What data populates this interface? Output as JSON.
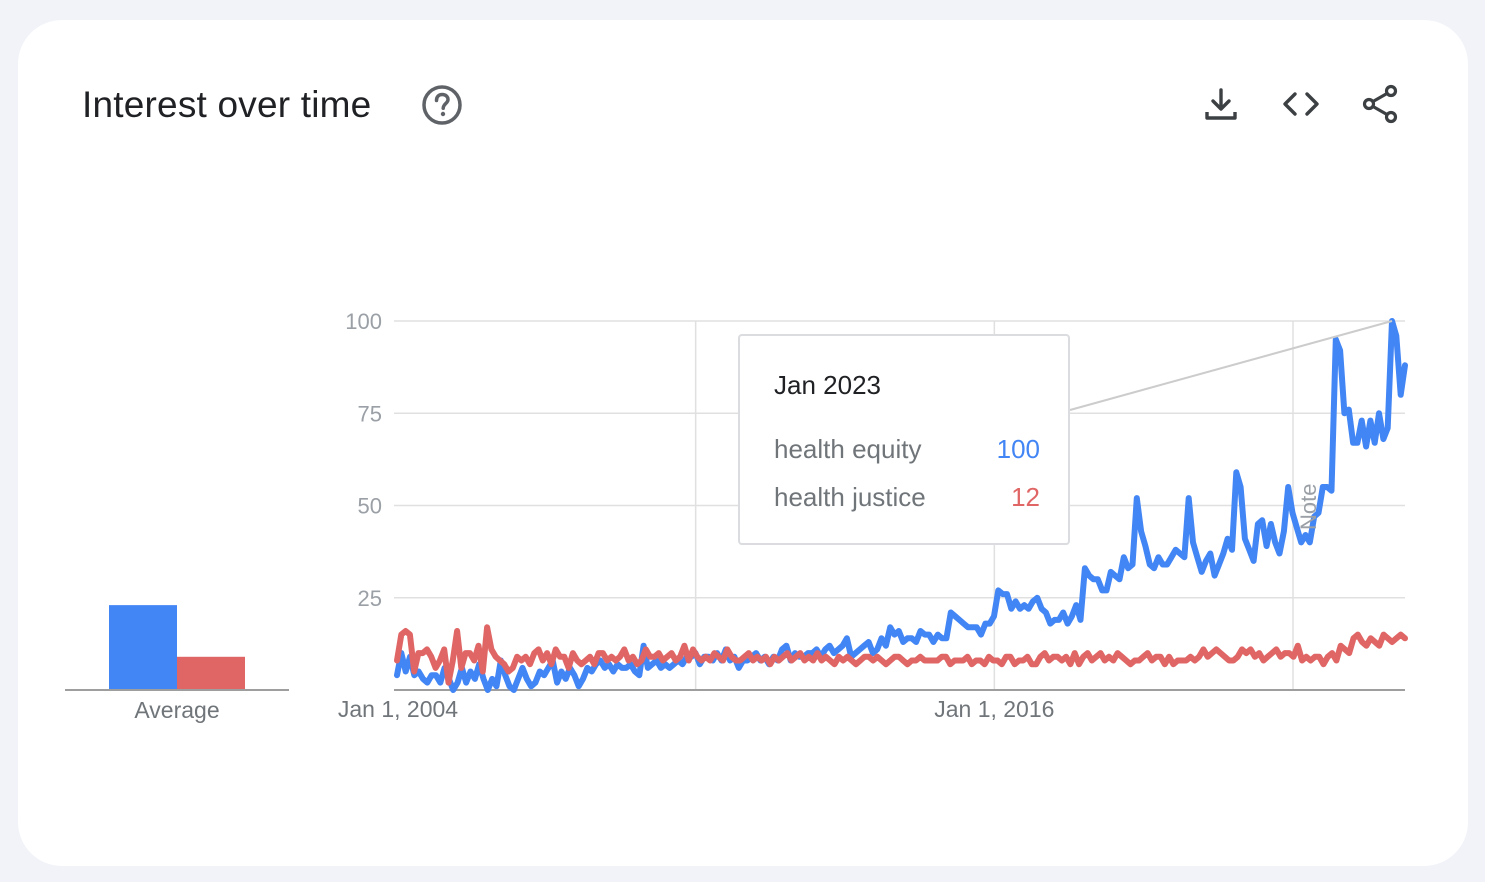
{
  "header": {
    "title": "Interest over time",
    "help_icon": "help-circle-icon",
    "tools": [
      {
        "name": "download-icon"
      },
      {
        "name": "embed-code-icon"
      },
      {
        "name": "share-icon"
      }
    ]
  },
  "chart_data": {
    "type": "line",
    "title": "Interest over time",
    "ylim": [
      0,
      100
    ],
    "yticks": [
      "25",
      "50",
      "75",
      "100"
    ],
    "ytick_values": [
      25,
      50,
      75,
      100
    ],
    "xtick_labels": [
      "Jan 1, 2004",
      "Jan 1, 2016"
    ],
    "x_start": "2004-01",
    "x_end": "2024-04",
    "gridlines": true,
    "note_label": "Note",
    "note_date": "2022-01",
    "series": [
      {
        "name": "health equity",
        "color": "#4285f4",
        "values": [
          4,
          10,
          5,
          9,
          4,
          5,
          3,
          2,
          4,
          4,
          2,
          6,
          3,
          0,
          2,
          6,
          2,
          5,
          3,
          7,
          3,
          0,
          3,
          1,
          8,
          4,
          1,
          0,
          3,
          6,
          3,
          1,
          2,
          5,
          4,
          6,
          8,
          2,
          5,
          3,
          6,
          4,
          1,
          3,
          6,
          5,
          7,
          8,
          6,
          7,
          5,
          7,
          6,
          6,
          7,
          5,
          4,
          12,
          6,
          7,
          8,
          6,
          7,
          6,
          7,
          8,
          7,
          9,
          9,
          10,
          7,
          9,
          9,
          8,
          10,
          8,
          11,
          8,
          9,
          6,
          8,
          8,
          9,
          10,
          8,
          9,
          7,
          9,
          8,
          11,
          12,
          8,
          10,
          9,
          9,
          10,
          10,
          11,
          9,
          11,
          12,
          10,
          11,
          12,
          14,
          9,
          10,
          11,
          12,
          13,
          10,
          11,
          14,
          12,
          17,
          15,
          16,
          13,
          14,
          14,
          13,
          16,
          15,
          15,
          13,
          15,
          14,
          14,
          21,
          20,
          19,
          18,
          17,
          17,
          17,
          15,
          18,
          18,
          20,
          27,
          26,
          26,
          22,
          24,
          22,
          23,
          22,
          24,
          25,
          22,
          21,
          18,
          19,
          19,
          21,
          18,
          20,
          23,
          19,
          33,
          31,
          30,
          30,
          27,
          27,
          32,
          31,
          30,
          36,
          33,
          34,
          52,
          43,
          39,
          34,
          33,
          36,
          34,
          34,
          36,
          38,
          37,
          36,
          52,
          40,
          36,
          32,
          35,
          37,
          31,
          34,
          37,
          41,
          38,
          59,
          55,
          41,
          38,
          35,
          45,
          46,
          39,
          45,
          40,
          37,
          43,
          55,
          48,
          44,
          40,
          42,
          40,
          47,
          48,
          55,
          55,
          54,
          95,
          92,
          75,
          76,
          67,
          67,
          73,
          66,
          73,
          67,
          75,
          68,
          71,
          100,
          96,
          80,
          88
        ]
      },
      {
        "name": "health justice",
        "color": "#e06666",
        "values": [
          8,
          15,
          16,
          15,
          5,
          10,
          10,
          11,
          9,
          6,
          8,
          11,
          2,
          8,
          16,
          6,
          10,
          10,
          8,
          12,
          5,
          17,
          11,
          9,
          8,
          7,
          5,
          6,
          9,
          8,
          9,
          7,
          10,
          11,
          8,
          10,
          7,
          11,
          9,
          9,
          6,
          10,
          8,
          7,
          8,
          9,
          7,
          10,
          10,
          8,
          9,
          8,
          9,
          11,
          8,
          9,
          7,
          8,
          11,
          9,
          9,
          10,
          8,
          9,
          10,
          8,
          9,
          12,
          8,
          11,
          9,
          8,
          9,
          8,
          10,
          9,
          8,
          11,
          9,
          8,
          8,
          9,
          10,
          8,
          9,
          8,
          9,
          7,
          9,
          8,
          9,
          10,
          8,
          9,
          10,
          8,
          9,
          8,
          10,
          8,
          9,
          8,
          7,
          9,
          8,
          9,
          8,
          7,
          8,
          9,
          9,
          8,
          9,
          8,
          7,
          8,
          9,
          9,
          8,
          7,
          8,
          8,
          9,
          8,
          8,
          8,
          8,
          9,
          9,
          7,
          8,
          8,
          8,
          9,
          7,
          8,
          8,
          7,
          9,
          8,
          8,
          7,
          9,
          9,
          7,
          8,
          8,
          9,
          7,
          7,
          9,
          10,
          8,
          9,
          9,
          8,
          9,
          7,
          10,
          7,
          9,
          10,
          8,
          9,
          10,
          8,
          9,
          8,
          10,
          9,
          8,
          7,
          8,
          8,
          9,
          10,
          8,
          9,
          9,
          7,
          9,
          7,
          8,
          8,
          8,
          9,
          8,
          9,
          11,
          9,
          10,
          11,
          10,
          9,
          8,
          8,
          9,
          11,
          10,
          11,
          9,
          10,
          8,
          9,
          10,
          11,
          9,
          10,
          10,
          9,
          12,
          8,
          9,
          8,
          9,
          9,
          7,
          9,
          10,
          8,
          12,
          11,
          10,
          14,
          15,
          13,
          12,
          14,
          13,
          12,
          15,
          14,
          13,
          14,
          15,
          14
        ]
      }
    ],
    "average": [
      {
        "name": "health equity",
        "value": 23
      },
      {
        "name": "health justice",
        "value": 9
      }
    ],
    "average_label": "Average",
    "tooltip": {
      "date": "Jan 2023",
      "rows": [
        {
          "name": "health equity",
          "value": "100",
          "color": "#4285f4"
        },
        {
          "name": "health justice",
          "value": "12",
          "color": "#e06666"
        }
      ]
    }
  }
}
